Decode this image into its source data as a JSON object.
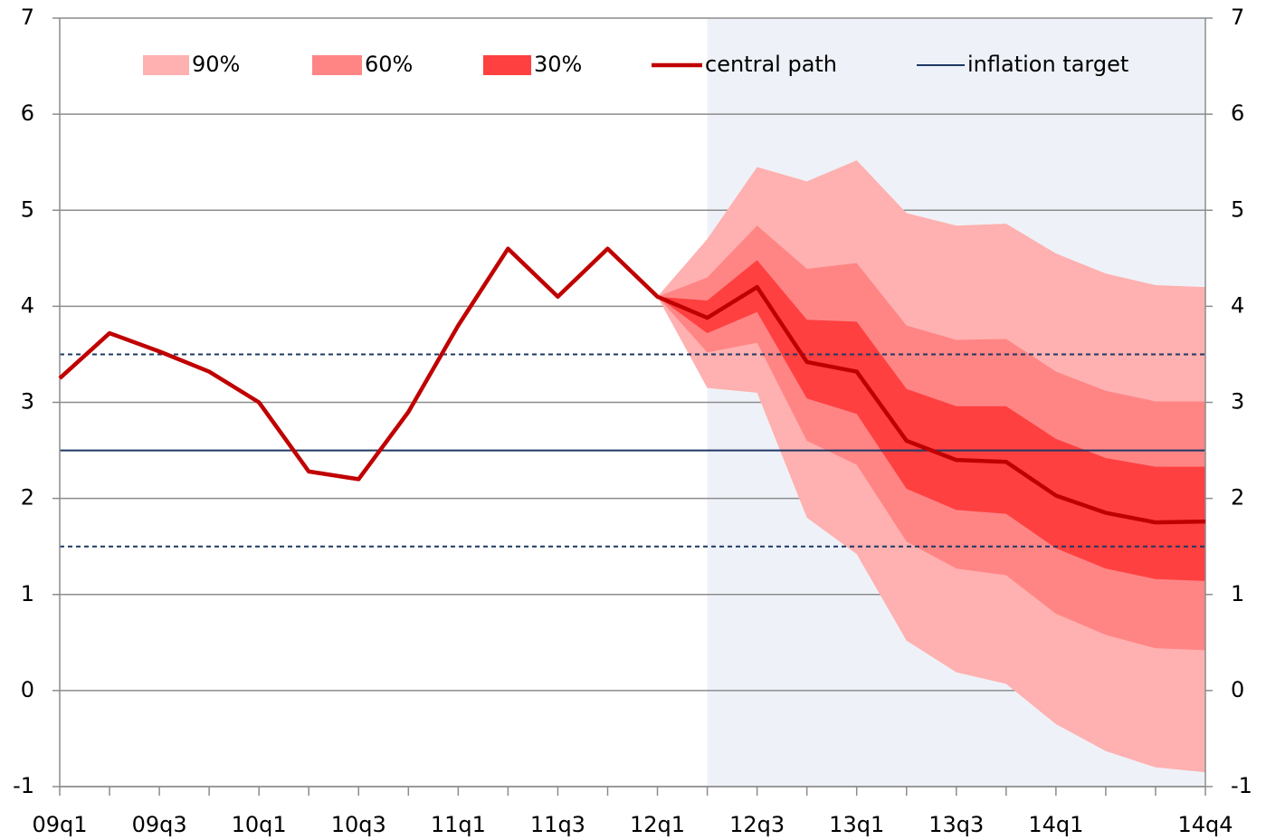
{
  "chart_data": {
    "type": "fan",
    "categories": [
      "09q1",
      null,
      "09q3",
      null,
      "10q1",
      null,
      "10q3",
      null,
      "11q1",
      null,
      "11q3",
      null,
      "12q1",
      null,
      "12q3",
      null,
      "13q1",
      null,
      "13q3",
      null,
      "14q1",
      null,
      null,
      "14q4"
    ],
    "ylim": [
      -1,
      7
    ],
    "yticks": [
      -1,
      0,
      1,
      2,
      3,
      4,
      5,
      6,
      7
    ],
    "y2lim": [
      -1,
      7
    ],
    "y2ticks": [
      -1,
      0,
      1,
      2,
      3,
      4,
      5,
      6,
      7
    ],
    "grid": true,
    "legend": "top",
    "forecast_shading": {
      "from_index": 13,
      "color": "#eef2f8"
    },
    "bands": [
      {
        "name": "90%",
        "color": "#ffb0b0",
        "upper": [
          null,
          null,
          null,
          null,
          null,
          null,
          null,
          null,
          null,
          null,
          null,
          null,
          4.1,
          4.7,
          5.45,
          5.3,
          5.52,
          4.97,
          4.84,
          4.86,
          4.55,
          4.34,
          4.22,
          4.2
        ],
        "lower": [
          null,
          null,
          null,
          null,
          null,
          null,
          null,
          null,
          null,
          null,
          null,
          null,
          4.1,
          3.15,
          3.1,
          1.8,
          1.42,
          0.52,
          0.19,
          0.07,
          -0.35,
          -0.63,
          -0.8,
          -0.85
        ]
      },
      {
        "name": "60%",
        "color": "#ff8585",
        "upper": [
          null,
          null,
          null,
          null,
          null,
          null,
          null,
          null,
          null,
          null,
          null,
          null,
          4.1,
          4.3,
          4.84,
          4.39,
          4.45,
          3.8,
          3.65,
          3.66,
          3.32,
          3.12,
          3.01,
          3.01
        ],
        "lower": [
          null,
          null,
          null,
          null,
          null,
          null,
          null,
          null,
          null,
          null,
          null,
          null,
          4.1,
          3.52,
          3.62,
          2.6,
          2.35,
          1.55,
          1.27,
          1.2,
          0.8,
          0.58,
          0.44,
          0.42
        ]
      },
      {
        "name": "30%",
        "color": "#ff4040",
        "upper": [
          null,
          null,
          null,
          null,
          null,
          null,
          null,
          null,
          null,
          null,
          null,
          null,
          4.1,
          4.06,
          4.48,
          3.86,
          3.84,
          3.14,
          2.96,
          2.96,
          2.62,
          2.42,
          2.33,
          2.33
        ],
        "lower": [
          null,
          null,
          null,
          null,
          null,
          null,
          null,
          null,
          null,
          null,
          null,
          null,
          4.1,
          3.72,
          3.94,
          3.04,
          2.88,
          2.1,
          1.88,
          1.84,
          1.48,
          1.27,
          1.16,
          1.14
        ]
      }
    ],
    "series": [
      {
        "name": "central path",
        "color": "#c00000",
        "values": [
          3.25,
          3.72,
          3.53,
          3.32,
          3.0,
          2.28,
          2.2,
          2.9,
          3.8,
          4.6,
          4.1,
          4.6,
          4.1,
          3.88,
          4.2,
          3.42,
          3.32,
          2.6,
          2.4,
          2.38,
          2.03,
          1.85,
          1.75,
          1.76
        ]
      }
    ],
    "inflation_target": {
      "name": "inflation target",
      "color": "#1f3864",
      "value": 2.5,
      "tolerance": [
        1.5,
        3.5
      ]
    }
  }
}
